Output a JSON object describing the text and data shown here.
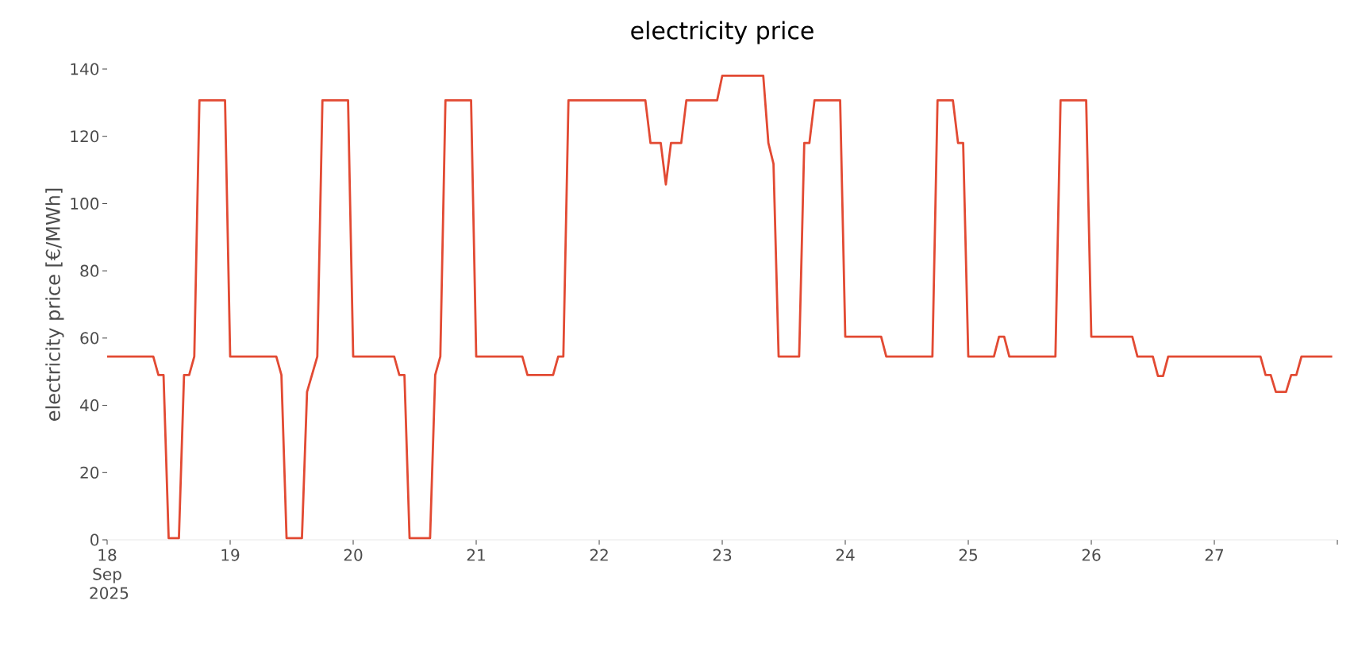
{
  "chart_data": {
    "type": "line",
    "title": "electricity price",
    "ylabel": "electricity price [€/MWh]",
    "xlim": [
      "2025-09-18T00:00",
      "2025-09-28T00:00"
    ],
    "xticks": [
      {
        "value": "2025-09-18",
        "label": "18 Sep 2025"
      },
      {
        "value": "2025-09-19",
        "label": "19"
      },
      {
        "value": "2025-09-20",
        "label": "20"
      },
      {
        "value": "2025-09-21",
        "label": "21"
      },
      {
        "value": "2025-09-22",
        "label": "22"
      },
      {
        "value": "2025-09-23",
        "label": "23"
      },
      {
        "value": "2025-09-24",
        "label": "24"
      },
      {
        "value": "2025-09-25",
        "label": "25"
      },
      {
        "value": "2025-09-26",
        "label": "26"
      },
      {
        "value": "2025-09-27",
        "label": "27"
      },
      {
        "value": "2025-09-28",
        "label": null
      }
    ],
    "ylim": [
      0,
      140
    ],
    "yticks": [
      0,
      20,
      40,
      60,
      80,
      100,
      120,
      140
    ],
    "grid": false,
    "legend": false,
    "marker": "none",
    "line_style": "solid",
    "series": [
      {
        "color": "#e24a33",
        "x": [
          "2025-09-18T00:00",
          "2025-09-18T09:00",
          "2025-09-18T10:00",
          "2025-09-18T11:00",
          "2025-09-18T12:00",
          "2025-09-18T14:00",
          "2025-09-18T15:00",
          "2025-09-18T16:00",
          "2025-09-18T17:00",
          "2025-09-18T18:00",
          "2025-09-18T23:00",
          "2025-09-19T00:00",
          "2025-09-19T09:00",
          "2025-09-19T10:00",
          "2025-09-19T11:00",
          "2025-09-19T14:00",
          "2025-09-19T15:00",
          "2025-09-19T17:00",
          "2025-09-19T18:00",
          "2025-09-19T23:00",
          "2025-09-20T00:00",
          "2025-09-20T08:00",
          "2025-09-20T09:00",
          "2025-09-20T10:00",
          "2025-09-20T11:00",
          "2025-09-20T15:00",
          "2025-09-20T16:00",
          "2025-09-20T17:00",
          "2025-09-20T18:00",
          "2025-09-20T23:00",
          "2025-09-21T00:00",
          "2025-09-21T09:00",
          "2025-09-21T10:00",
          "2025-09-21T15:00",
          "2025-09-21T16:00",
          "2025-09-21T17:00",
          "2025-09-21T18:00",
          "2025-09-22T09:00",
          "2025-09-22T10:00",
          "2025-09-22T12:00",
          "2025-09-22T13:00",
          "2025-09-22T14:00",
          "2025-09-22T16:00",
          "2025-09-22T17:00",
          "2025-09-22T23:00",
          "2025-09-23T00:00",
          "2025-09-23T08:00",
          "2025-09-23T09:00",
          "2025-09-23T10:00",
          "2025-09-23T11:00",
          "2025-09-23T15:00",
          "2025-09-23T16:00",
          "2025-09-23T17:00",
          "2025-09-23T18:00",
          "2025-09-23T23:00",
          "2025-09-24T00:00",
          "2025-09-24T07:00",
          "2025-09-24T08:00",
          "2025-09-24T17:00",
          "2025-09-24T18:00",
          "2025-09-24T21:00",
          "2025-09-24T22:00",
          "2025-09-24T23:00",
          "2025-09-25T00:00",
          "2025-09-25T05:00",
          "2025-09-25T06:00",
          "2025-09-25T07:00",
          "2025-09-25T08:00",
          "2025-09-25T17:00",
          "2025-09-25T18:00",
          "2025-09-25T23:00",
          "2025-09-26T00:00",
          "2025-09-26T08:00",
          "2025-09-26T09:00",
          "2025-09-26T12:00",
          "2025-09-26T13:00",
          "2025-09-26T14:00",
          "2025-09-26T15:00",
          "2025-09-27T09:00",
          "2025-09-27T10:00",
          "2025-09-27T11:00",
          "2025-09-27T12:00",
          "2025-09-27T14:00",
          "2025-09-27T15:00",
          "2025-09-27T16:00",
          "2025-09-27T17:00",
          "2025-09-27T23:00"
        ],
        "values": [
          54.5,
          54.5,
          49,
          49,
          0.5,
          0.5,
          49,
          49,
          54.5,
          130.7,
          130.7,
          54.5,
          54.5,
          49,
          0.5,
          0.5,
          44,
          54.5,
          130.7,
          130.7,
          54.5,
          54.5,
          49,
          49,
          0.5,
          0.5,
          49,
          54.5,
          130.7,
          130.7,
          54.5,
          54.5,
          49,
          49,
          54.5,
          54.5,
          130.7,
          130.7,
          118,
          118,
          105.7,
          118,
          118,
          130.7,
          130.7,
          138,
          138,
          118,
          111.8,
          54.5,
          54.5,
          118,
          118,
          130.7,
          130.7,
          60.4,
          60.4,
          54.5,
          54.5,
          130.7,
          130.7,
          118,
          118,
          54.5,
          54.5,
          60.4,
          60.4,
          54.5,
          54.5,
          130.7,
          130.7,
          60.4,
          60.4,
          54.5,
          54.5,
          48.7,
          48.7,
          54.5,
          54.5,
          49,
          49,
          44,
          44,
          49,
          49,
          54.5,
          54.5
        ]
      }
    ]
  }
}
